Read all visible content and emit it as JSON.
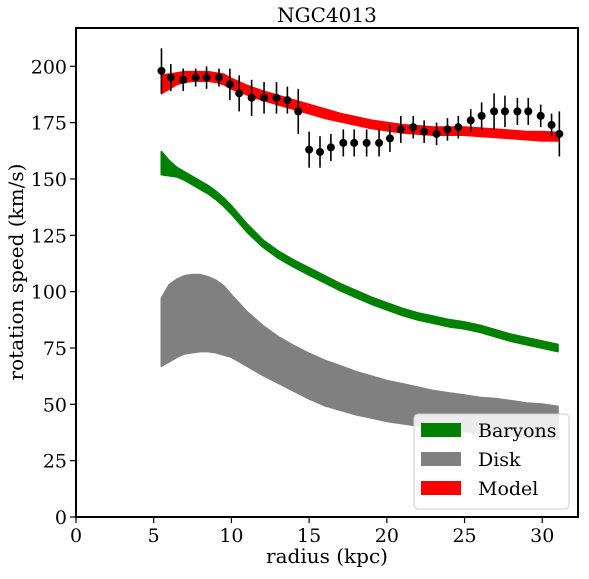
{
  "chart_data": {
    "type": "line",
    "title": "NGC4013",
    "xlabel": "radius (kpc)",
    "ylabel": "rotation speed (km/s)",
    "xlim": [
      0,
      32.3
    ],
    "ylim": [
      0,
      217
    ],
    "xticks": [
      0,
      5,
      10,
      15,
      20,
      25,
      30
    ],
    "yticks": [
      0,
      25,
      50,
      75,
      100,
      125,
      150,
      175,
      200
    ],
    "grid": false,
    "legend_position": "lower-right",
    "legend": [
      {
        "label": "Baryons",
        "color": "#008000"
      },
      {
        "label": "Disk",
        "color": "#808080"
      },
      {
        "label": "Model",
        "color": "#ff0000"
      }
    ],
    "observed": {
      "color": "#000000",
      "points": [
        {
          "x": 5.5,
          "y": 198,
          "err": 10
        },
        {
          "x": 6.1,
          "y": 195,
          "err": 6
        },
        {
          "x": 6.9,
          "y": 194,
          "err": 5
        },
        {
          "x": 7.7,
          "y": 195,
          "err": 4
        },
        {
          "x": 8.4,
          "y": 195,
          "err": 5
        },
        {
          "x": 9.2,
          "y": 195,
          "err": 4
        },
        {
          "x": 9.9,
          "y": 192,
          "err": 7
        },
        {
          "x": 10.5,
          "y": 188,
          "err": 8
        },
        {
          "x": 11.3,
          "y": 186,
          "err": 8
        },
        {
          "x": 12.1,
          "y": 186,
          "err": 7
        },
        {
          "x": 12.9,
          "y": 186,
          "err": 7
        },
        {
          "x": 13.6,
          "y": 185,
          "err": 6
        },
        {
          "x": 14.3,
          "y": 180,
          "err": 10
        },
        {
          "x": 15.0,
          "y": 163,
          "err": 8
        },
        {
          "x": 15.7,
          "y": 162,
          "err": 7
        },
        {
          "x": 16.4,
          "y": 164,
          "err": 6
        },
        {
          "x": 17.2,
          "y": 166,
          "err": 6
        },
        {
          "x": 17.9,
          "y": 166,
          "err": 6
        },
        {
          "x": 18.7,
          "y": 166,
          "err": 6
        },
        {
          "x": 19.5,
          "y": 166,
          "err": 6
        },
        {
          "x": 20.2,
          "y": 168,
          "err": 6
        },
        {
          "x": 20.9,
          "y": 172,
          "err": 6
        },
        {
          "x": 21.7,
          "y": 173,
          "err": 5
        },
        {
          "x": 22.4,
          "y": 171,
          "err": 5
        },
        {
          "x": 23.2,
          "y": 170,
          "err": 5
        },
        {
          "x": 23.9,
          "y": 172,
          "err": 5
        },
        {
          "x": 24.6,
          "y": 173,
          "err": 5
        },
        {
          "x": 25.4,
          "y": 176,
          "err": 5
        },
        {
          "x": 26.1,
          "y": 178,
          "err": 6
        },
        {
          "x": 26.9,
          "y": 180,
          "err": 8
        },
        {
          "x": 27.6,
          "y": 180,
          "err": 7
        },
        {
          "x": 28.4,
          "y": 180,
          "err": 6
        },
        {
          "x": 29.1,
          "y": 180,
          "err": 6
        },
        {
          "x": 29.9,
          "y": 178,
          "err": 5
        },
        {
          "x": 30.6,
          "y": 174,
          "err": 5
        },
        {
          "x": 31.1,
          "y": 170,
          "err": 10
        }
      ]
    },
    "model_band": {
      "color": "#ff0000",
      "x": [
        5.5,
        6.0,
        6.5,
        7.0,
        7.5,
        8.0,
        8.5,
        9.0,
        9.5,
        10.0,
        11.0,
        12.0,
        13.0,
        14.0,
        15.0,
        16.0,
        17.0,
        18.0,
        19.0,
        20.0,
        21.0,
        22.0,
        23.0,
        24.0,
        25.0,
        26.0,
        27.0,
        28.0,
        29.0,
        30.0,
        31.0
      ],
      "upper": [
        196,
        196.5,
        197,
        197.5,
        197.5,
        197.5,
        197.5,
        197,
        196.5,
        194.5,
        191.5,
        189,
        187,
        185,
        183,
        181,
        179,
        177.5,
        176,
        175,
        174,
        173.5,
        173,
        173,
        173,
        172.5,
        172,
        171.5,
        171,
        171,
        170.5
      ],
      "lower": [
        188,
        190,
        192,
        193,
        193.5,
        193.5,
        193.5,
        193,
        192,
        190,
        187.5,
        185,
        183,
        181,
        179,
        177,
        175.5,
        174,
        172.5,
        171.5,
        170.5,
        170,
        169.5,
        169.5,
        169.5,
        169,
        168.5,
        168,
        167.5,
        167,
        167
      ]
    },
    "baryons_band": {
      "color": "#008000",
      "x": [
        5.5,
        6.0,
        6.5,
        7.0,
        7.5,
        8.0,
        8.5,
        9.0,
        9.5,
        10.0,
        11.0,
        12.0,
        13.0,
        14.0,
        15.0,
        16.0,
        17.0,
        18.0,
        19.0,
        20.0,
        21.0,
        22.0,
        23.0,
        24.0,
        25.0,
        26.0,
        27.0,
        28.0,
        29.0,
        30.0,
        31.0
      ],
      "upper": [
        162,
        158,
        155,
        153,
        151,
        149,
        147,
        144.5,
        141.5,
        138,
        130,
        123,
        118,
        114,
        110.5,
        107,
        103.5,
        100.5,
        97.5,
        95,
        92.5,
        90.5,
        89,
        87.5,
        86.5,
        85,
        83,
        81,
        79.5,
        78,
        76.5
      ],
      "lower": [
        152,
        151.5,
        151,
        149.5,
        147.5,
        145.5,
        143.5,
        141,
        138,
        134.5,
        126.5,
        120,
        115,
        111,
        107.5,
        104,
        100.5,
        97.5,
        94.5,
        92,
        89.5,
        87.5,
        86,
        84.5,
        83.5,
        82,
        80,
        78,
        76.5,
        75,
        73.5
      ]
    },
    "disk_band": {
      "color": "#808080",
      "x": [
        5.5,
        6.0,
        6.5,
        7.0,
        7.5,
        8.0,
        8.5,
        9.0,
        9.5,
        10.0,
        11.0,
        12.0,
        13.0,
        14.0,
        15.0,
        16.0,
        17.0,
        18.0,
        19.0,
        20.0,
        21.0,
        22.0,
        23.0,
        24.0,
        25.0,
        26.0,
        27.0,
        28.0,
        29.0,
        30.0,
        31.0
      ],
      "upper": [
        97,
        103,
        105.5,
        107,
        107.5,
        107.5,
        106.5,
        105,
        102.5,
        98.5,
        91,
        85,
        80,
        76,
        72.5,
        69.5,
        67,
        64.5,
        62.5,
        60.5,
        59,
        57.5,
        56,
        55,
        54,
        53,
        52.5,
        51.5,
        50.5,
        50,
        49
      ],
      "lower": [
        67,
        69,
        71,
        72.5,
        73,
        73.5,
        73.5,
        73,
        72,
        71,
        67,
        63,
        59.5,
        56,
        52.5,
        49.5,
        47.5,
        45.5,
        44,
        42.5,
        41.5,
        40.5,
        39.5,
        38.5,
        38,
        37,
        36.5,
        36,
        35.5,
        35,
        34.5
      ]
    }
  }
}
